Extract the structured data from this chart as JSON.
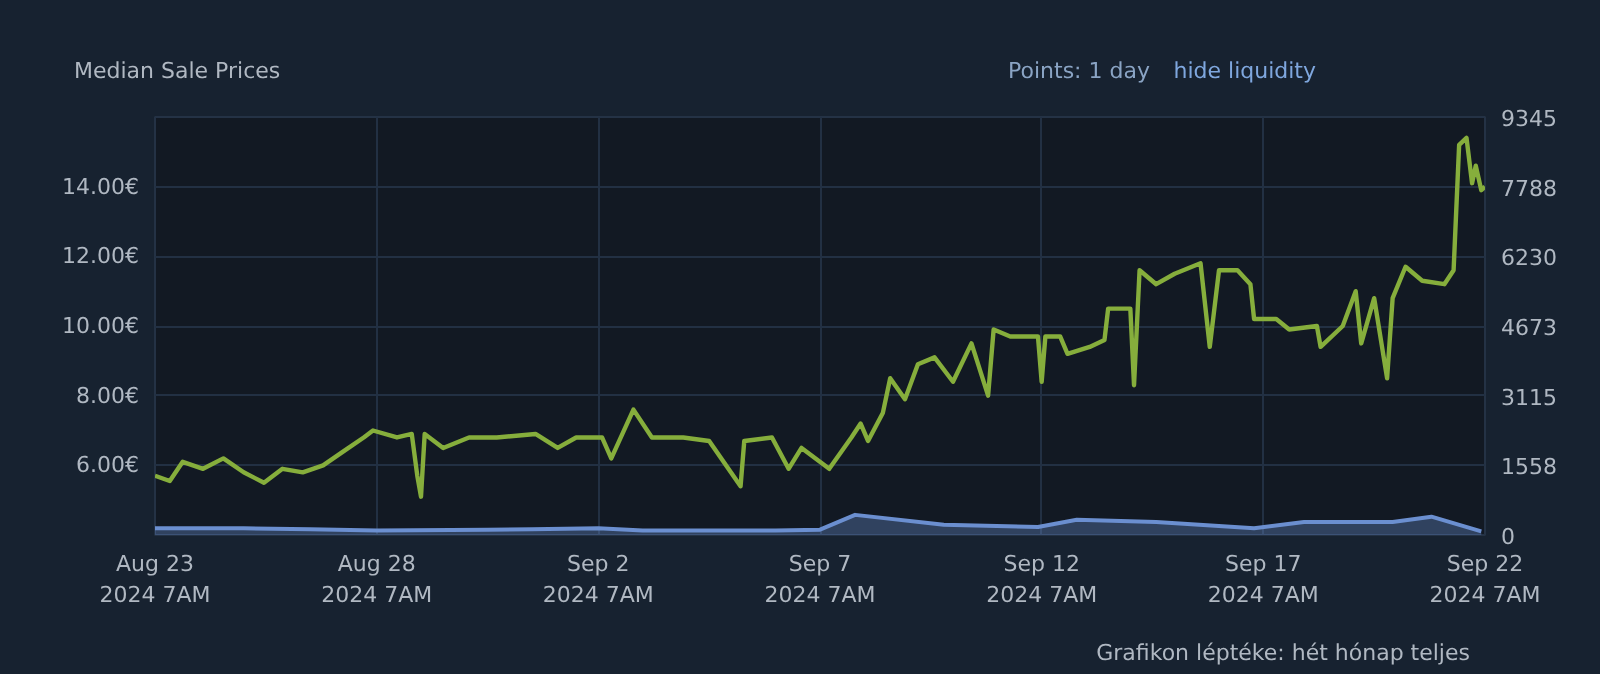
{
  "chart_data": {
    "type": "line",
    "title": "Median Sale Prices",
    "annotations": [
      "Points: 1 day",
      "hide liquidity",
      "Grafikon léptéke: hét hónap teljes"
    ],
    "xlim": [
      "2024-08-23T07:00",
      "2024-09-22T07:00"
    ],
    "xticks": [
      {
        "value": "2024-08-23T07:00",
        "label": "Aug 23\n2024 7AM"
      },
      {
        "value": "2024-08-28T07:00",
        "label": "Aug 28\n2024 7AM"
      },
      {
        "value": "2024-09-02T07:00",
        "label": "Sep 2\n2024 7AM"
      },
      {
        "value": "2024-09-07T07:00",
        "label": "Sep 7\n2024 7AM"
      },
      {
        "value": "2024-09-12T07:00",
        "label": "Sep 12\n2024 7AM"
      },
      {
        "value": "2024-09-17T07:00",
        "label": "Sep 17\n2024 7AM"
      },
      {
        "value": "2024-09-22T07:00",
        "label": "Sep 22\n2024 7AM"
      }
    ],
    "ylim": [
      4,
      16
    ],
    "yticks": [
      {
        "value": 6,
        "label": "6.00€"
      },
      {
        "value": 8,
        "label": "8.00€"
      },
      {
        "value": 10,
        "label": "10.00€"
      },
      {
        "value": 12,
        "label": "12.00€"
      },
      {
        "value": 14,
        "label": "14.00€"
      }
    ],
    "y2lim": [
      0,
      9345
    ],
    "y2ticks": [
      0,
      1558,
      3115,
      4673,
      6230,
      7788,
      9345
    ],
    "grid": true,
    "line_style": "solid",
    "marker": "none",
    "series": [
      {
        "color": "#86ae3c",
        "x": [
          "2024-08-23T07:00",
          "2024-08-23T15:00",
          "2024-08-23T22:00",
          "2024-08-24T09:00",
          "2024-08-24T20:00",
          "2024-08-25T07:00",
          "2024-08-25T18:00",
          "2024-08-26T04:00",
          "2024-08-26T15:00",
          "2024-08-27T02:00",
          "2024-08-27T13:00",
          "2024-08-28T00:00",
          "2024-08-28T05:00",
          "2024-08-28T18:00",
          "2024-08-29T02:00",
          "2024-08-29T05:00",
          "2024-08-29T07:00",
          "2024-08-29T09:00",
          "2024-08-29T19:00",
          "2024-08-30T09:00",
          "2024-08-31T00:00",
          "2024-08-31T21:00",
          "2024-09-01T09:00",
          "2024-09-01T19:00",
          "2024-09-02T09:00",
          "2024-09-02T14:00",
          "2024-09-03T02:00",
          "2024-09-03T12:00",
          "2024-09-04T05:00",
          "2024-09-04T19:00",
          "2024-09-05T12:00",
          "2024-09-05T14:00",
          "2024-09-06T05:00",
          "2024-09-06T14:00",
          "2024-09-06T21:00",
          "2024-09-07T12:00",
          "2024-09-08T00:00",
          "2024-09-08T05:00",
          "2024-09-08T09:00",
          "2024-09-08T17:00",
          "2024-09-08T21:00",
          "2024-09-09T05:00",
          "2024-09-09T12:00",
          "2024-09-09T21:00",
          "2024-09-10T07:00",
          "2024-09-10T17:00",
          "2024-09-11T02:00",
          "2024-09-11T05:00",
          "2024-09-11T14:00",
          "2024-09-12T05:00",
          "2024-09-12T07:00",
          "2024-09-12T09:00",
          "2024-09-12T17:00",
          "2024-09-12T21:00",
          "2024-09-13T09:00",
          "2024-09-13T17:00",
          "2024-09-13T19:00",
          "2024-09-14T07:00",
          "2024-09-14T09:00",
          "2024-09-14T12:00",
          "2024-09-14T21:00",
          "2024-09-15T07:00",
          "2024-09-15T21:00",
          "2024-09-16T02:00",
          "2024-09-16T07:00",
          "2024-09-16T17:00",
          "2024-09-17T00:00",
          "2024-09-17T02:00",
          "2024-09-17T14:00",
          "2024-09-17T21:00",
          "2024-09-18T12:00",
          "2024-09-18T14:00",
          "2024-09-19T02:00",
          "2024-09-19T09:00",
          "2024-09-19T12:00",
          "2024-09-19T19:00",
          "2024-09-20T02:00",
          "2024-09-20T05:00",
          "2024-09-20T12:00",
          "2024-09-20T21:00",
          "2024-09-21T09:00",
          "2024-09-21T14:00",
          "2024-09-21T17:00",
          "2024-09-21T21:00",
          "2024-09-22T00:00",
          "2024-09-22T02:00",
          "2024-09-22T05:00",
          "2024-09-22T07:00"
        ],
        "values": [
          5.7,
          5.55,
          6.1,
          5.9,
          6.2,
          5.8,
          5.5,
          5.9,
          5.8,
          6.0,
          6.4,
          6.8,
          7.0,
          6.8,
          6.9,
          5.7,
          5.1,
          6.9,
          6.5,
          6.8,
          6.8,
          6.9,
          6.5,
          6.8,
          6.8,
          6.2,
          7.6,
          6.8,
          6.8,
          6.7,
          5.4,
          6.7,
          6.8,
          5.9,
          6.5,
          5.9,
          6.8,
          7.2,
          6.7,
          7.5,
          8.5,
          7.9,
          8.9,
          9.1,
          8.4,
          9.5,
          8.0,
          9.9,
          9.7,
          9.7,
          8.4,
          9.7,
          9.7,
          9.2,
          9.4,
          9.6,
          10.5,
          10.5,
          8.3,
          11.6,
          11.2,
          11.5,
          11.8,
          9.4,
          11.6,
          11.6,
          11.2,
          10.2,
          10.2,
          9.9,
          10.0,
          9.4,
          10.0,
          11.0,
          9.5,
          10.8,
          8.5,
          10.8,
          11.7,
          11.3,
          11.2,
          11.6,
          15.2,
          15.4,
          14.1,
          14.6,
          13.9,
          14.0
        ]
      },
      {
        "type": "area",
        "axis": "y2",
        "color": "#6b8fd0",
        "x": [
          "2024-08-23T07:00",
          "2024-08-25T07:00",
          "2024-08-26T19:00",
          "2024-08-28T07:00",
          "2024-08-30T19:00",
          "2024-08-31T19:00",
          "2024-09-02T07:00",
          "2024-09-03T07:00",
          "2024-09-06T07:00",
          "2024-09-07T07:00",
          "2024-09-08T02:00",
          "2024-09-10T02:00",
          "2024-09-12T05:00",
          "2024-09-13T02:00",
          "2024-09-14T21:00",
          "2024-09-17T02:00",
          "2024-09-18T05:00",
          "2024-09-20T05:00",
          "2024-09-21T02:00",
          "2024-09-22T05:00"
        ],
        "values": [
          150,
          150,
          130,
          100,
          120,
          130,
          150,
          100,
          100,
          120,
          450,
          230,
          180,
          340,
          290,
          150,
          290,
          290,
          410,
          80
        ]
      }
    ]
  }
}
